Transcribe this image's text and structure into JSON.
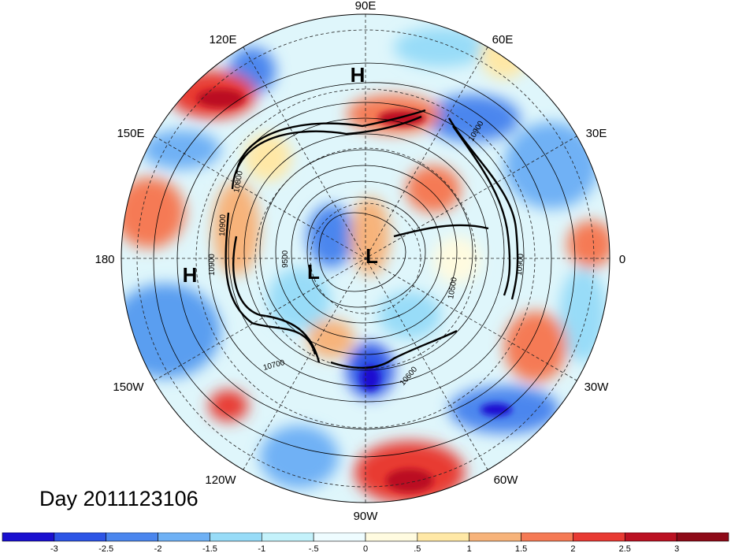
{
  "map": {
    "longitude_labels": [
      "90E",
      "60E",
      "30E",
      "0",
      "30W",
      "60W",
      "90W",
      "120W",
      "150W",
      "180",
      "150E",
      "120E"
    ],
    "centers": [
      {
        "type": "H",
        "name": "high-north"
      },
      {
        "type": "L",
        "name": "low-center-right"
      },
      {
        "type": "L",
        "name": "low-center-left"
      },
      {
        "type": "H",
        "name": "high-west"
      }
    ],
    "contour_labels": [
      "10900",
      "10800",
      "10900",
      "10900",
      "9500",
      "10700",
      "10600",
      "10500",
      "10900"
    ],
    "anomaly_colors": {
      "strong_negative": "#1a18c8",
      "negative": "#5a9ef0",
      "weak_negative": "#bfeef8",
      "neutral": "#ffffff",
      "weak_positive": "#fff2c0",
      "positive": "#f49a6e",
      "strong_positive": "#c8102e"
    }
  },
  "day_label": "Day 2011123106",
  "colorbar": {
    "tick_labels": [
      "-3",
      "-2.5",
      "-2",
      "-1.5",
      "-1",
      "-.5",
      "0",
      ".5",
      "1",
      "1.5",
      "2",
      "2.5",
      "3"
    ],
    "colors": [
      "#1a10d0",
      "#2d55e6",
      "#4b86ee",
      "#6fb1f5",
      "#98dcf8",
      "#c4f2fb",
      "#eefcff",
      "#fffbe0",
      "#ffe8a6",
      "#f7b37a",
      "#f57a55",
      "#e83a33",
      "#bb1122",
      "#8e0a18"
    ]
  }
}
